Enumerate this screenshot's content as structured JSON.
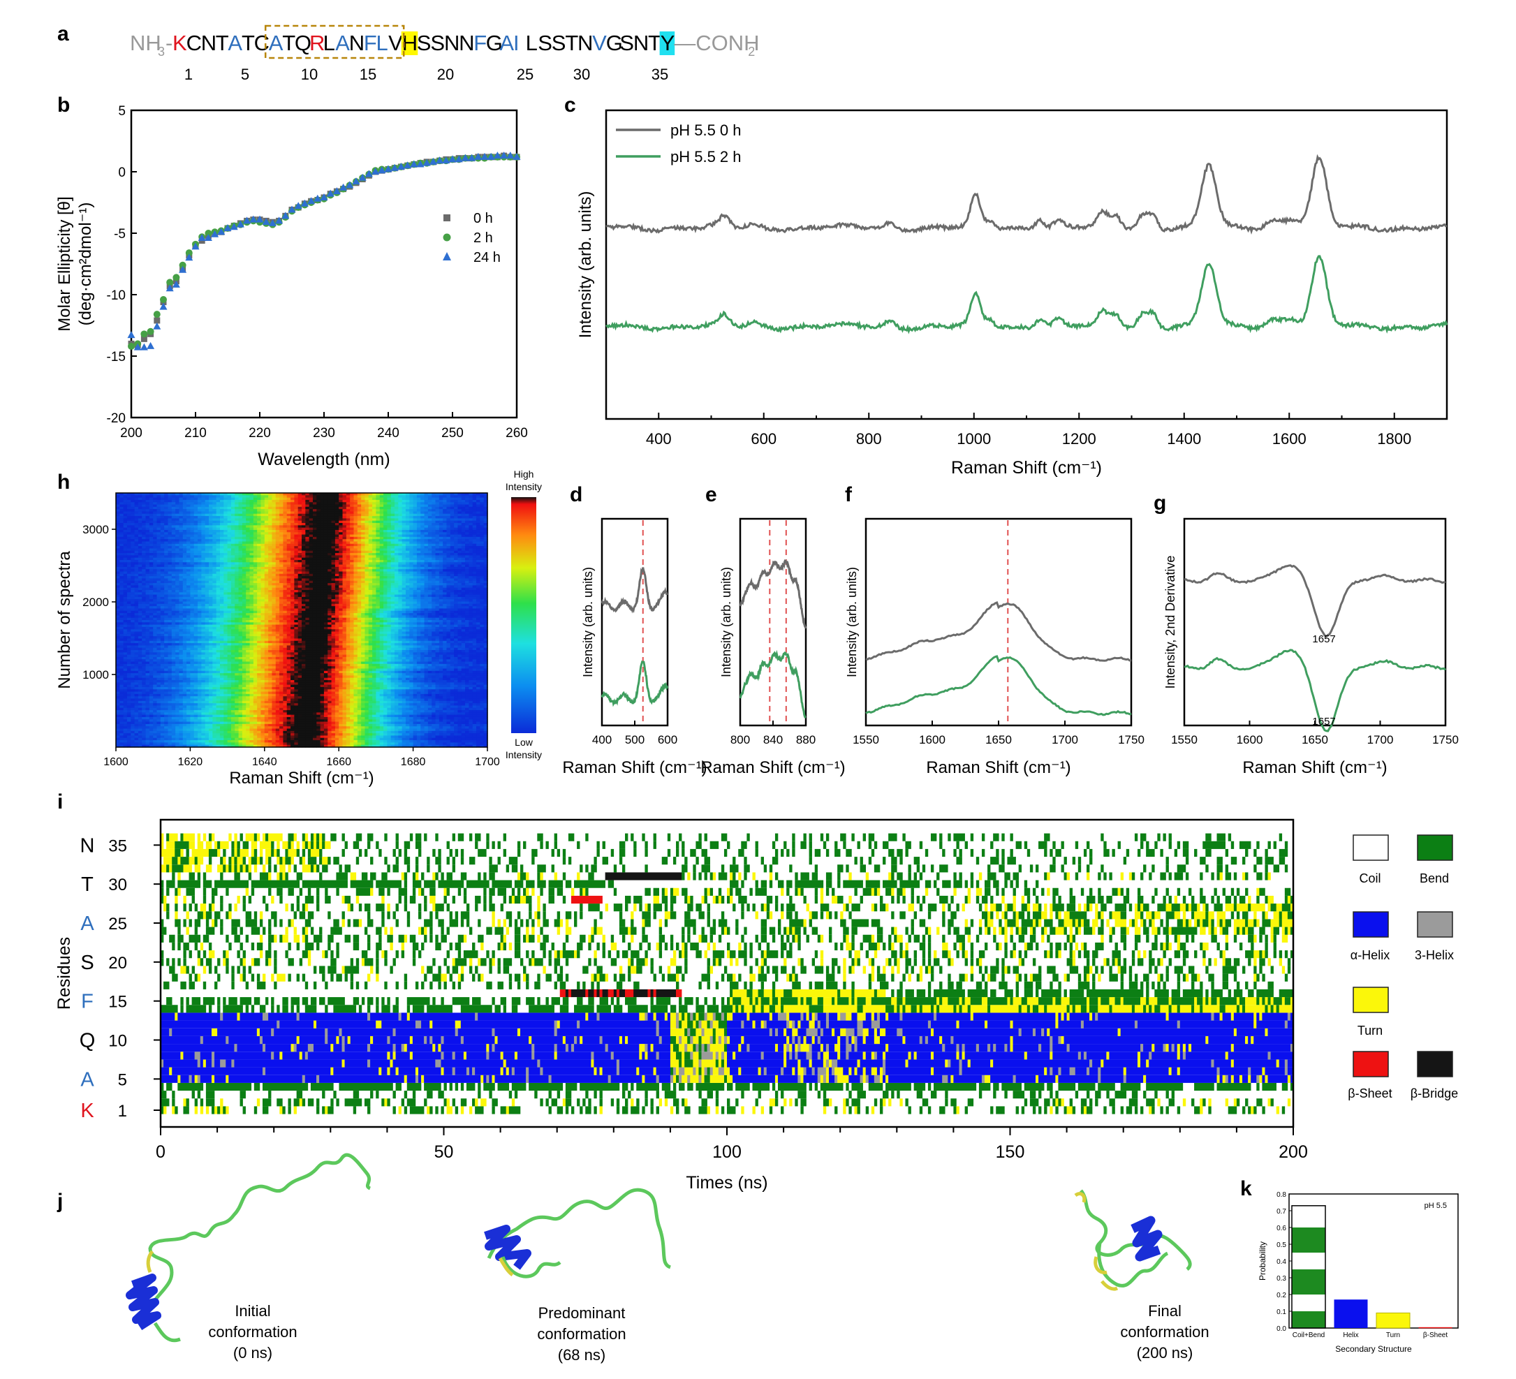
{
  "panel_letters": {
    "a": "a",
    "b": "b",
    "c": "c",
    "d": "d",
    "e": "e",
    "f": "f",
    "g": "g",
    "h": "h",
    "i": "i",
    "j": "j",
    "k": "k"
  },
  "sequence": {
    "prefix": "NH",
    "prefix_sub": "3",
    "prefix_dash": "-",
    "residues": "KCNTATCATQRLANFLVHSSNNFGAILSSTNVGSNTY",
    "red": [
      1,
      11
    ],
    "blue": [
      5,
      8,
      13,
      15,
      16,
      23,
      25,
      26,
      32
    ],
    "yellow_highlight": 18,
    "cyan_highlight": 37,
    "suffix": "—CONH",
    "suffix_sub": "2",
    "numbers": [
      "1",
      "5",
      "10",
      "15",
      "20",
      "25",
      "30",
      "35"
    ]
  },
  "colors": {
    "gray": "#6b6b6b",
    "green": "#3f9e5f",
    "blue_marker": "#2e6fd1",
    "cd_green": "#46a046",
    "seq_red": "#e0141e",
    "seq_blue": "#2f6fbd",
    "seq_gray": "#999999",
    "dssp_blue": "#0a10ee",
    "dssp_green": "#0c7f14",
    "dssp_yellow": "#fbf70a",
    "dssp_red": "#ee1212",
    "dssp_gray": "#9b9b9b",
    "dssp_black": "#151515"
  },
  "chart_data": [
    {
      "id": "b",
      "type": "scatter",
      "xlabel": "Wavelength (nm)",
      "ylabel_line1": "Molar Ellipticity [θ]",
      "ylabel_line2": "(deg·cm²dmol⁻¹)",
      "xlim": [
        200,
        260
      ],
      "ylim": [
        -20,
        5
      ],
      "xticks": [
        "200",
        "210",
        "220",
        "230",
        "240",
        "250",
        "260"
      ],
      "yticks": [
        "5",
        "0",
        "-5",
        "-10",
        "-15",
        "-20"
      ],
      "legend": [
        "0 h",
        "2 h",
        "24 h"
      ],
      "x": [
        200,
        201,
        202,
        203,
        204,
        205,
        206,
        207,
        208,
        209,
        210,
        211,
        212,
        213,
        214,
        215,
        216,
        217,
        218,
        219,
        220,
        221,
        222,
        223,
        224,
        225,
        226,
        227,
        228,
        229,
        230,
        231,
        232,
        233,
        234,
        235,
        236,
        237,
        238,
        239,
        240,
        241,
        242,
        243,
        244,
        245,
        246,
        247,
        248,
        249,
        250,
        251,
        252,
        253,
        254,
        255,
        256,
        257,
        258,
        259,
        260
      ],
      "series": [
        {
          "name": "0 h",
          "values": [
            -14.0,
            -14.1,
            -13.6,
            -13.2,
            -12.1,
            -10.6,
            -9.3,
            -8.9,
            -7.9,
            -6.8,
            -6.0,
            -5.6,
            -5.2,
            -5.0,
            -4.9,
            -4.6,
            -4.4,
            -4.2,
            -4.0,
            -3.9,
            -3.9,
            -4.0,
            -4.1,
            -4.0,
            -3.6,
            -3.1,
            -2.9,
            -2.6,
            -2.4,
            -2.3,
            -2.1,
            -1.8,
            -1.6,
            -1.4,
            -1.2,
            -0.9,
            -0.6,
            -0.3,
            0.0,
            0.1,
            0.2,
            0.3,
            0.4,
            0.5,
            0.6,
            0.7,
            0.8,
            0.8,
            0.9,
            1.0,
            1.0,
            1.1,
            1.1,
            1.1,
            1.2,
            1.2,
            1.2,
            1.2,
            1.3,
            1.2,
            1.2
          ]
        },
        {
          "name": "2 h",
          "values": [
            -14.2,
            -14.0,
            -13.2,
            -13.0,
            -11.6,
            -10.4,
            -9.0,
            -8.6,
            -7.6,
            -6.6,
            -5.9,
            -5.3,
            -5.0,
            -4.9,
            -4.8,
            -4.6,
            -4.4,
            -4.3,
            -4.1,
            -4.0,
            -4.1,
            -4.2,
            -4.3,
            -4.1,
            -3.7,
            -3.2,
            -2.9,
            -2.7,
            -2.5,
            -2.3,
            -2.2,
            -1.9,
            -1.7,
            -1.4,
            -1.1,
            -0.8,
            -0.5,
            -0.2,
            0.1,
            0.2,
            0.2,
            0.3,
            0.4,
            0.5,
            0.6,
            0.7,
            0.7,
            0.8,
            0.9,
            0.9,
            1.0,
            1.0,
            1.1,
            1.1,
            1.1,
            1.1,
            1.2,
            1.2,
            1.2,
            1.2,
            1.2
          ]
        },
        {
          "name": "24 h",
          "values": [
            -13.3,
            -14.3,
            -14.3,
            -14.2,
            -12.6,
            -11.0,
            -9.5,
            -9.2,
            -8.0,
            -7.0,
            -6.1,
            -5.4,
            -5.4,
            -5.1,
            -4.9,
            -4.6,
            -4.5,
            -4.3,
            -4.0,
            -3.9,
            -3.9,
            -4.1,
            -4.2,
            -4.0,
            -3.6,
            -3.1,
            -2.8,
            -2.6,
            -2.4,
            -2.2,
            -2.1,
            -1.8,
            -1.6,
            -1.3,
            -1.1,
            -0.8,
            -0.5,
            -0.2,
            0.0,
            0.1,
            0.2,
            0.3,
            0.4,
            0.5,
            0.6,
            0.6,
            0.7,
            0.8,
            0.9,
            0.9,
            1.0,
            1.0,
            1.1,
            1.1,
            1.2,
            1.2,
            1.2,
            1.3,
            1.3,
            1.3,
            1.2
          ]
        }
      ]
    },
    {
      "id": "c",
      "type": "line",
      "xlabel": "Raman Shift (cm⁻¹)",
      "ylabel": "Intensity (arb. units)",
      "xlim": [
        300,
        1900
      ],
      "ylim": [
        0,
        1
      ],
      "xticks": [
        "400",
        "600",
        "800",
        "1000",
        "1200",
        "1400",
        "1600",
        "1800"
      ],
      "legend": [
        "pH 5.5 0 h",
        "pH 5.5 2 h"
      ],
      "peaks": [
        [
          525,
          0.032
        ],
        [
          580,
          0.012
        ],
        [
          840,
          0.016
        ],
        [
          1003,
          0.1
        ],
        [
          1030,
          0.02
        ],
        [
          1125,
          0.032
        ],
        [
          1160,
          0.022
        ],
        [
          1245,
          0.045
        ],
        [
          1270,
          0.04
        ],
        [
          1320,
          0.04
        ],
        [
          1340,
          0.045
        ],
        [
          1447,
          0.2
        ],
        [
          1570,
          0.025
        ],
        [
          1605,
          0.03
        ],
        [
          1657,
          0.22
        ]
      ],
      "series": [
        {
          "name": "pH 5.5 0 h",
          "baseline": 0.62
        },
        {
          "name": "pH 5.5 2 h",
          "baseline": 0.3
        }
      ]
    },
    {
      "id": "d",
      "type": "line",
      "xlabel": "Raman Shift (cm⁻¹)",
      "ylabel": "Intensity (arb. units)",
      "xlim": [
        400,
        600
      ],
      "xticks": [
        "400",
        "500",
        "600"
      ],
      "marker_x": [
        525
      ]
    },
    {
      "id": "e",
      "type": "line",
      "xlabel": "Raman Shift (cm⁻¹)",
      "ylabel": "Intensity (arb. units)",
      "xlim": [
        800,
        880
      ],
      "xticks": [
        "800",
        "840",
        "880"
      ],
      "marker_x": [
        836,
        856
      ]
    },
    {
      "id": "f",
      "type": "line",
      "xlabel": "Raman Shift (cm⁻¹)",
      "ylabel": "Intensity (arb. units)",
      "xlim": [
        1550,
        1750
      ],
      "xticks": [
        "1550",
        "1600",
        "1650",
        "1700",
        "1750"
      ],
      "marker_x": [
        1657
      ]
    },
    {
      "id": "g",
      "type": "line",
      "xlabel": "Raman Shift (cm⁻¹)",
      "ylabel": "Intensity, 2nd Derivative",
      "xlim": [
        1550,
        1750
      ],
      "xticks": [
        "1550",
        "1600",
        "1650",
        "1700",
        "1750"
      ],
      "annotations": [
        "1657",
        "1657"
      ]
    },
    {
      "id": "h",
      "type": "heatmap",
      "xlabel": "Raman Shift (cm⁻¹)",
      "ylabel": "Number of spectra",
      "xlim": [
        1600,
        1700
      ],
      "ylim": [
        0,
        3500
      ],
      "xticks": [
        "1600",
        "1620",
        "1640",
        "1660",
        "1680",
        "1700"
      ],
      "yticks": [
        "1000",
        "2000",
        "3000"
      ],
      "colorbar_high": "High\nIntensity",
      "colorbar_low": "Low\nIntensity",
      "peak_center": 1657
    },
    {
      "id": "i",
      "type": "heatmap",
      "xlabel": "Times (ns)",
      "ylabel": "Residues",
      "xlim": [
        0,
        200
      ],
      "ylim": [
        1,
        37
      ],
      "xticks": [
        "0",
        "50",
        "100",
        "150",
        "200"
      ],
      "yticks": [
        {
          "letter": "N",
          "num": "35",
          "y": 35,
          "color": "#000"
        },
        {
          "letter": "T",
          "num": "30",
          "y": 30,
          "color": "#000"
        },
        {
          "letter": "A",
          "num": "25",
          "y": 25,
          "color": "#2f6fbd"
        },
        {
          "letter": "S",
          "num": "20",
          "y": 20,
          "color": "#000"
        },
        {
          "letter": "F",
          "num": "15",
          "y": 15,
          "color": "#2f6fbd"
        },
        {
          "letter": "Q",
          "num": "10",
          "y": 10,
          "color": "#000"
        },
        {
          "letter": "A",
          "num": "5",
          "y": 5,
          "color": "#2f6fbd"
        },
        {
          "letter": "K",
          "num": "1",
          "y": 1,
          "color": "#e0141e"
        }
      ],
      "legend": [
        "Coil",
        "Bend",
        "α-Helix",
        "3-Helix",
        "Turn",
        "β-Sheet",
        "β-Bridge"
      ]
    },
    {
      "id": "k",
      "type": "bar",
      "xlabel": "Secondary Structure",
      "ylabel": "Probability",
      "title": "pH 5.5",
      "categories": [
        "Coil+Bend",
        "Helix",
        "Turn",
        "β-Sheet"
      ],
      "values": [
        0.73,
        0.17,
        0.09,
        0.005
      ],
      "ylim": [
        0,
        0.8
      ],
      "yticks": [
        "0.0",
        "0.1",
        "0.2",
        "0.3",
        "0.4",
        "0.5",
        "0.6",
        "0.7",
        "0.8"
      ]
    }
  ],
  "conformations": [
    {
      "line1": "Initial",
      "line2": "conformation",
      "line3": "(0 ns)"
    },
    {
      "line1": "Predominant",
      "line2": "conformation",
      "line3": "(68 ns)"
    },
    {
      "line1": "Final",
      "line2": "conformation",
      "line3": "(200 ns)"
    }
  ]
}
